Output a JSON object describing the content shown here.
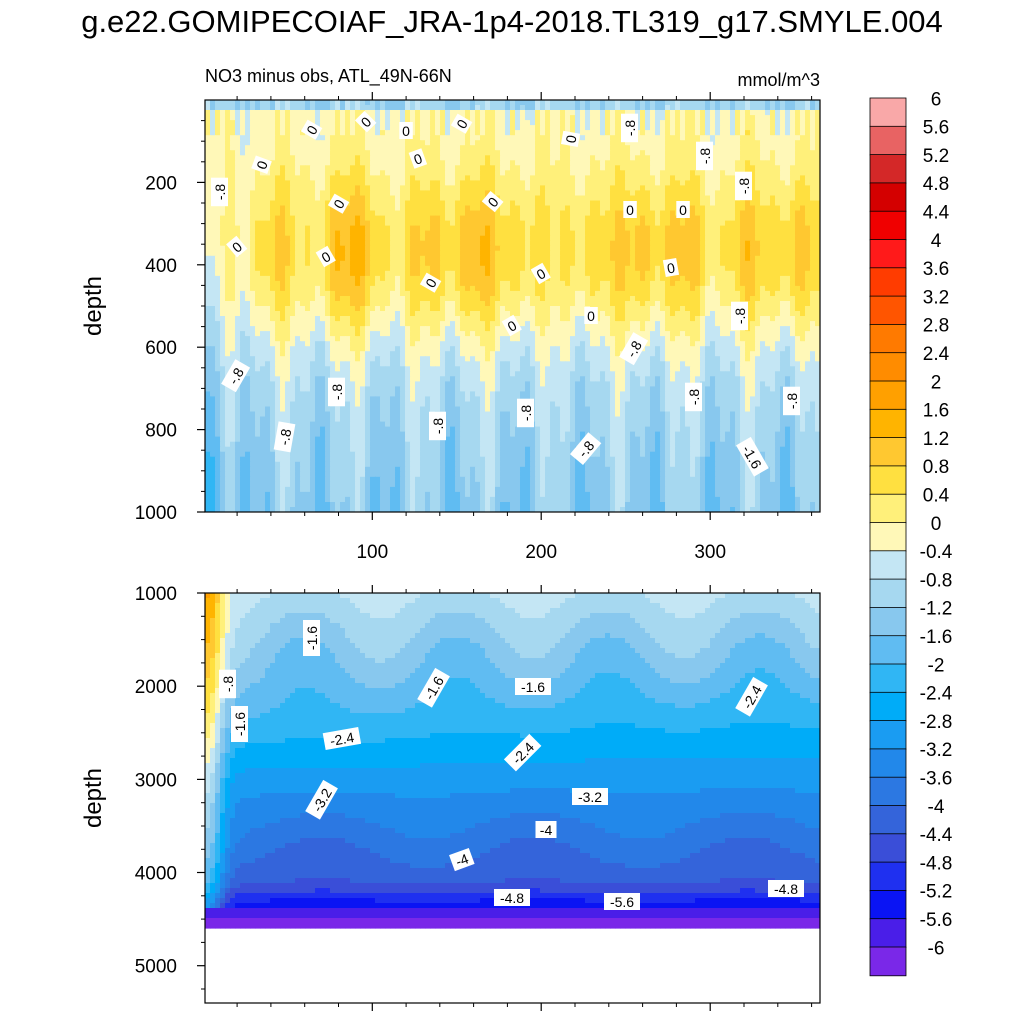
{
  "title": "g.e22.GOMIPECOIAF_JRA-1p4-2018.TL319_g17.SMYLE.004",
  "chart_data": {
    "type": "heatmap",
    "title": "g.e22.GOMIPECOIAF_JRA-1p4-2018.TL319_g17.SMYLE.004",
    "subtitle_left": "NO3 minus obs, ATL_49N-66N",
    "subtitle_right": "mmol/m^3",
    "xlabel": "",
    "ylabel": "depth",
    "xlim": [
      1,
      365
    ],
    "x_ticks": [
      100,
      200,
      300
    ],
    "panels": [
      {
        "name": "upper",
        "ylim": [
          0,
          1000
        ],
        "y_ticks": [
          200,
          400,
          600,
          800,
          1000
        ],
        "contour_labels": [
          "0",
          "0",
          "0",
          "0",
          "0",
          "0",
          "0",
          "0",
          "0",
          "0",
          "0",
          "0",
          "0",
          "0",
          "0",
          "0",
          "0",
          "0",
          "-.8",
          "-.8",
          "-.8",
          "-.8",
          "-.8",
          "-.8",
          "-.8",
          "-.8",
          "-.8",
          "-.8",
          "-.8",
          "-.8",
          "-.8",
          "-.8",
          "-1.6"
        ]
      },
      {
        "name": "lower",
        "ylim": [
          1000,
          5400
        ],
        "y_ticks": [
          1000,
          2000,
          3000,
          4000,
          5000
        ],
        "bottom_depth": 4600,
        "contour_labels": [
          "-1.6",
          "-.8",
          "-1.6",
          "-1.6",
          "-1.6",
          "-2.4",
          "-2.4",
          "-2.4",
          "-3.2",
          "-3.2",
          "-4",
          "-4",
          "-4.8",
          "-5.6",
          "-4.8"
        ]
      }
    ],
    "colorbar": {
      "labels": [
        "6",
        "5.6",
        "5.2",
        "4.8",
        "4.4",
        "4",
        "3.6",
        "3.2",
        "2.8",
        "2.4",
        "2",
        "1.6",
        "1.2",
        "0.8",
        "0.4",
        "0",
        "-0.4",
        "-0.8",
        "-1.2",
        "-1.6",
        "-2",
        "-2.4",
        "-2.8",
        "-3.2",
        "-3.6",
        "-4",
        "-4.4",
        "-4.8",
        "-5.2",
        "-5.6",
        "-6"
      ],
      "colors": [
        "#f9a8a8",
        "#e86363",
        "#d42828",
        "#d40000",
        "#f00000",
        "#ff1a1a",
        "#ff3c00",
        "#ff5500",
        "#ff7a00",
        "#ff8c00",
        "#ffa000",
        "#ffb400",
        "#ffc830",
        "#ffe040",
        "#fff07a",
        "#fff8b8",
        "#c4e6f4",
        "#a6d8f0",
        "#88c8ee",
        "#60bcf2",
        "#30b6f4",
        "#00acf8",
        "#1a9cf2",
        "#2288ea",
        "#2c78e2",
        "#3464da",
        "#3a4ed8",
        "#1f30f0",
        "#0a14f4",
        "#4a1ee8",
        "#7a28e8"
      ]
    }
  }
}
